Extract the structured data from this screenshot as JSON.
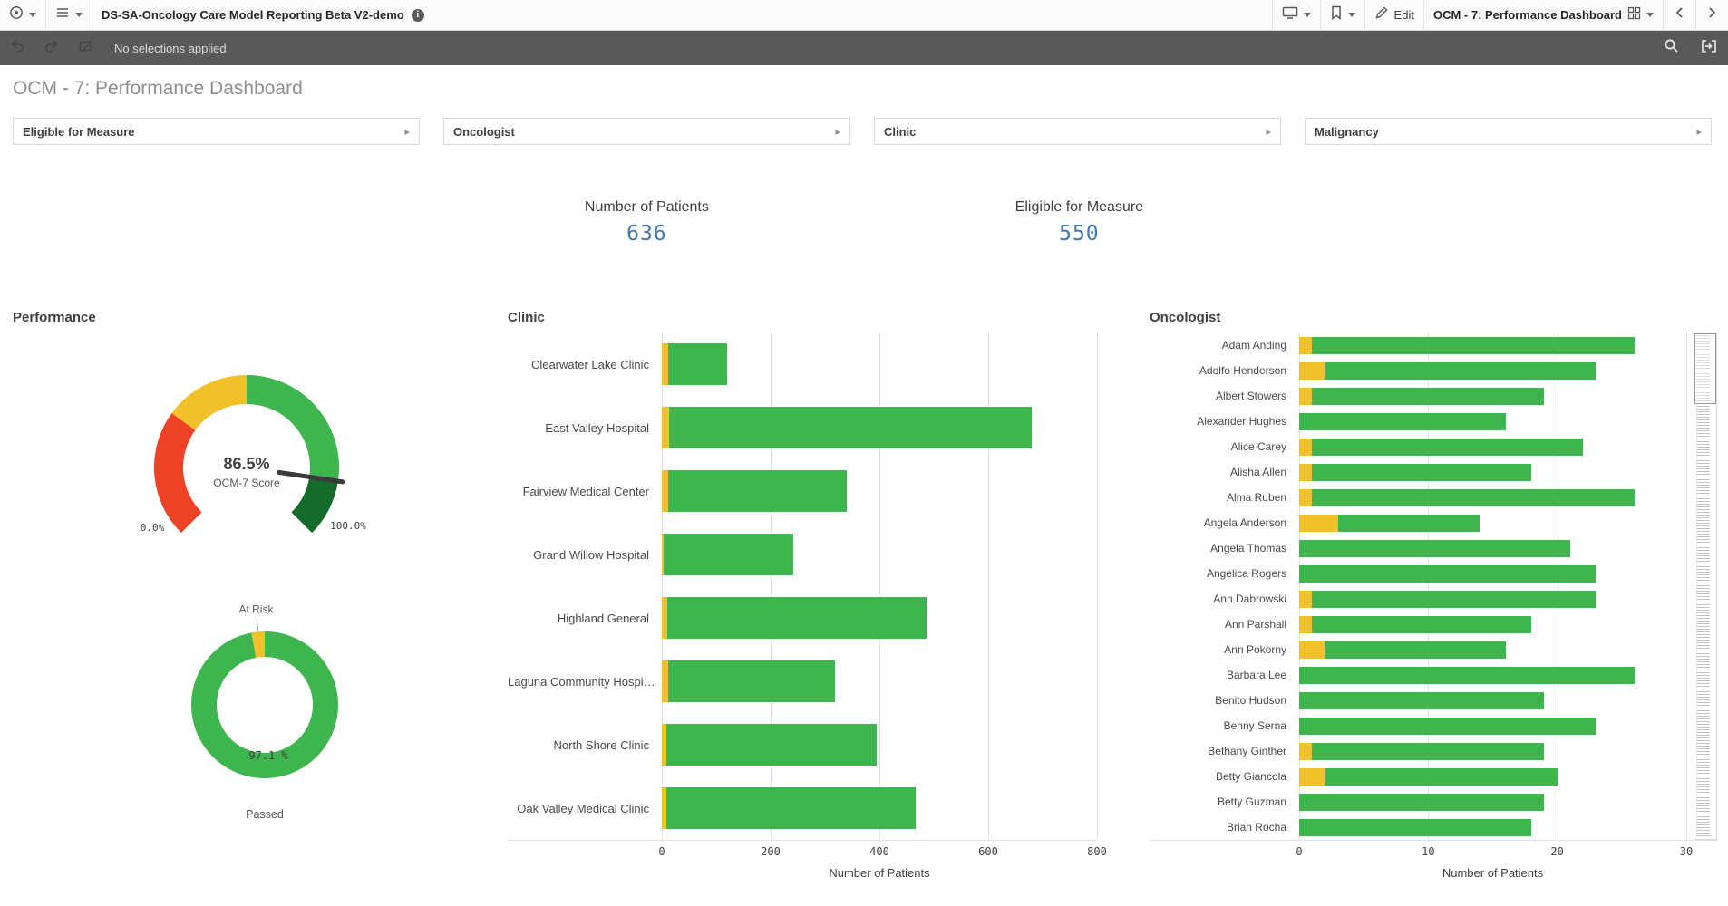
{
  "toolbar": {
    "app_title": "DS-SA-Oncology Care Model Reporting Beta V2-demo",
    "edit_label": "Edit",
    "sheet_label": "OCM - 7: Performance Dashboard"
  },
  "selections_bar": {
    "status": "No selections applied"
  },
  "page": {
    "title": "OCM - 7: Performance Dashboard"
  },
  "filters": [
    {
      "label": "Eligible for Measure"
    },
    {
      "label": "Oncologist"
    },
    {
      "label": "Clinic"
    },
    {
      "label": "Malignancy"
    }
  ],
  "kpis": [
    {
      "label": "Number of Patients",
      "value": "636"
    },
    {
      "label": "Eligible for Measure",
      "value": "550"
    }
  ],
  "icons": {
    "app": "app-circle",
    "menu": "list",
    "info_glyph": "i",
    "display": "monitor",
    "bookmark": "bookmark",
    "edit": "pencil",
    "sheets": "grid",
    "prev": "chevron-left",
    "next": "chevron-right",
    "undo": "undo-arrow",
    "redo": "redo-arrow",
    "clear_selections": "clear-selections",
    "search": "magnifier",
    "selections_tool": "selections-tool",
    "filter_expand": "▸"
  },
  "colors": {
    "green": "#3eb54e",
    "dark_green": "#156b2a",
    "yellow": "#f0c12b",
    "red": "#ee4226",
    "kpi_blue": "#4477aa",
    "selections_bar": "#595959"
  },
  "chart_data": [
    {
      "id": "gauge",
      "type": "gauge",
      "title": "Performance",
      "value": 86.5,
      "value_label": "86.5%",
      "sub_label": "OCM-7 Score",
      "min": 0,
      "max": 100,
      "min_label": "0.0%",
      "max_label": "100.0%",
      "segments": [
        {
          "from": 0,
          "to": 30,
          "color": "#ee4226"
        },
        {
          "from": 30,
          "to": 50,
          "color": "#f0c12b"
        },
        {
          "from": 50,
          "to": 86.5,
          "color": "#3eb54e"
        },
        {
          "from": 86.5,
          "to": 100,
          "color": "#156b2a"
        }
      ]
    },
    {
      "id": "donut",
      "type": "pie",
      "slices": [
        {
          "label": "Passed",
          "value": 97.1,
          "color": "#3eb54e"
        },
        {
          "label": "At Risk",
          "value": 2.9,
          "color": "#f0c12b"
        }
      ],
      "value_label": "97.1 %",
      "callout_label": "At Risk",
      "bottom_label": "Passed"
    },
    {
      "id": "clinic",
      "type": "bar",
      "orientation": "horizontal",
      "stacked": true,
      "title": "Clinic",
      "xlabel": "Number of Patients",
      "xlim": [
        0,
        800
      ],
      "ticks": [
        0,
        200,
        400,
        600,
        800
      ],
      "scrollbar": false,
      "categories": [
        "Clearwater Lake Clinic",
        "East Valley Hospital",
        "Fairview Medical Center",
        "Grand Willow Hospital",
        "Highland General",
        "Laguna Community Hospi…",
        "North Shore Clinic",
        "Oak Valley Medical Clinic"
      ],
      "series": [
        {
          "name": "At Risk",
          "color": "#f0c12b",
          "values": [
            12,
            14,
            12,
            4,
            10,
            12,
            8,
            8
          ]
        },
        {
          "name": "Passed",
          "color": "#3eb54e",
          "values": [
            108,
            666,
            328,
            238,
            477,
            306,
            387,
            459
          ]
        }
      ]
    },
    {
      "id": "oncologist",
      "type": "bar",
      "orientation": "horizontal",
      "stacked": true,
      "title": "Oncologist",
      "xlabel": "Number of Patients",
      "xlim": [
        0,
        30
      ],
      "ticks": [
        0,
        10,
        20,
        30
      ],
      "scrollbar": true,
      "categories": [
        "Adam Anding",
        "Adolfo Henderson",
        "Albert Stowers",
        "Alexander Hughes",
        "Alice Carey",
        "Alisha Allen",
        "Alma Ruben",
        "Angela Anderson",
        "Angela Thomas",
        "Angelica Rogers",
        "Ann Dabrowski",
        "Ann Parshall",
        "Ann Pokorny",
        "Barbara Lee",
        "Benito Hudson",
        "Benny Serna",
        "Bethany Ginther",
        "Betty Giancola",
        "Betty Guzman",
        "Brian Rocha"
      ],
      "series": [
        {
          "name": "At Risk",
          "color": "#f0c12b",
          "values": [
            1,
            2,
            1,
            0,
            1,
            1,
            1,
            3,
            0,
            0,
            1,
            1,
            2,
            0,
            0,
            0,
            1,
            2,
            0,
            0
          ]
        },
        {
          "name": "Passed",
          "color": "#3eb54e",
          "values": [
            25,
            21,
            18,
            16,
            21,
            17,
            25,
            11,
            21,
            23,
            22,
            17,
            14,
            26,
            19,
            23,
            18,
            18,
            19,
            18
          ]
        }
      ]
    }
  ]
}
